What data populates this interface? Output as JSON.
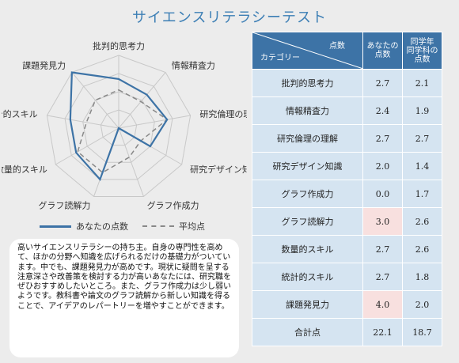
{
  "title": "サイエンスリテラシーテスト",
  "legend": {
    "score": "あなたの点数",
    "average": "平均点"
  },
  "table": {
    "header_score": "点数",
    "header_category": "カテゴリー",
    "header_you": "あなたの\n点数",
    "header_peer": "同学年\n同学科の\n点数",
    "rows": [
      {
        "category": "批判的思考力",
        "you": "2.7",
        "peer": "2.1",
        "highlight": false
      },
      {
        "category": "情報精査力",
        "you": "2.4",
        "peer": "1.9",
        "highlight": false
      },
      {
        "category": "研究倫理の理解",
        "you": "2.7",
        "peer": "2.7",
        "highlight": false
      },
      {
        "category": "研究デザイン知識",
        "you": "2.0",
        "peer": "1.4",
        "highlight": false
      },
      {
        "category": "グラフ作成力",
        "you": "0.0",
        "peer": "1.7",
        "highlight": false
      },
      {
        "category": "グラフ読解力",
        "you": "3.0",
        "peer": "2.6",
        "highlight": true
      },
      {
        "category": "数量的スキル",
        "you": "2.7",
        "peer": "2.6",
        "highlight": false
      },
      {
        "category": "統計的スキル",
        "you": "2.7",
        "peer": "1.8",
        "highlight": false
      },
      {
        "category": "課題発見力",
        "you": "4.0",
        "peer": "2.0",
        "highlight": true
      },
      {
        "category": "合計点",
        "you": "22.1",
        "peer": "18.7",
        "highlight": false
      }
    ]
  },
  "description": "高いサイエンスリテラシーの持ち主。自身の専門性を高めて、ほかの分野へ知識を広げられるだけの基礎力がついています。中でも、課題発見力が高めです。現状に疑問を呈する注意深さや改善策を検討する力が高いあなたには、研究職をぜひおすすめしたいところ。また、グラフ作成力は少し弱いようです。教科書や論文のグラフ読解から新しい知識を得ることで、アイデアのレパートリーを増やすことができます。",
  "chart_data": {
    "type": "radar",
    "categories": [
      "批判的思考力",
      "情報精査力",
      "研究倫理の理解",
      "研究デザイン知識",
      "グラフ作成力",
      "グラフ読解力",
      "数量的スキル",
      "統計的スキル",
      "課題発見力"
    ],
    "max": 4,
    "levels": 4,
    "series": [
      {
        "name": "あなたの点数",
        "values": [
          2.7,
          2.4,
          2.7,
          2.0,
          0.0,
          3.0,
          2.7,
          2.7,
          4.0
        ],
        "color": "#3d73a6",
        "style": "solid"
      },
      {
        "name": "平均点",
        "values": [
          2.1,
          1.9,
          2.7,
          1.4,
          1.7,
          2.6,
          2.6,
          1.8,
          2.0
        ],
        "color": "#888888",
        "style": "dashed"
      }
    ]
  }
}
